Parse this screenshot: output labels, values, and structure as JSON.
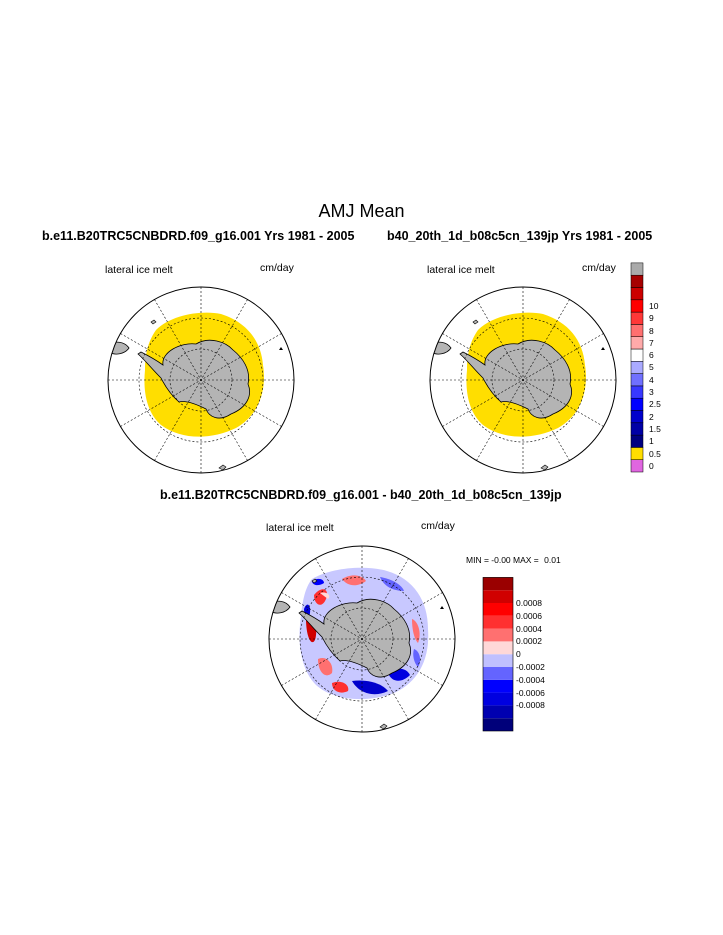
{
  "title": "AMJ Mean",
  "panels": [
    {
      "case_header": "b.e11.B20TRC5CNBDRD.f09_g16.001  Yrs 1981 - 2005",
      "variable": "lateral ice melt",
      "units": "cm/day"
    },
    {
      "case_header": "b40_20th_1d_b08c5cn_139jp  Yrs 1981 - 2005",
      "variable": "lateral ice melt",
      "units": "cm/day"
    }
  ],
  "diff_panel": {
    "header": "b.e11.B20TRC5CNBDRD.f09_g16.001 - b40_20th_1d_b08c5cn_139jp",
    "variable": "lateral ice melt",
    "units": "cm/day",
    "min_label": "MIN =",
    "min_value": "-0.00",
    "max_label": "MAX =",
    "max_value": "0.01"
  },
  "top_colorbar": {
    "colors": [
      "#e066e0",
      "#ffde00",
      "#000080",
      "#0000a6",
      "#0000cc",
      "#0000ff",
      "#3838ff",
      "#7070ff",
      "#aaaaff",
      "#ffffff",
      "#ffaaaa",
      "#ff7070",
      "#ff3838",
      "#ff0000",
      "#cc0000",
      "#a60000",
      "#aaaaaa"
    ],
    "labels": [
      "0",
      "0.5",
      "1",
      "1.5",
      "2",
      "2.5",
      "3",
      "4",
      "5",
      "6",
      "7",
      "8",
      "9",
      "10"
    ]
  },
  "diff_colorbar": {
    "colors": [
      "#00007a",
      "#0000b0",
      "#0000e0",
      "#0000ff",
      "#6464ff",
      "#c0c0ff",
      "#ffd8d8",
      "#ff7070",
      "#ff3030",
      "#ff0000",
      "#d00000",
      "#9a0000"
    ],
    "labels": [
      "-0.0008",
      "-0.0006",
      "-0.0004",
      "-0.0002",
      "0",
      "0.0002",
      "0.0004",
      "0.0006",
      "0.0008"
    ]
  },
  "colors": {
    "ice_fill": "#ffde00",
    "land": "#b4b4b4",
    "ocean": "#ffffff"
  }
}
